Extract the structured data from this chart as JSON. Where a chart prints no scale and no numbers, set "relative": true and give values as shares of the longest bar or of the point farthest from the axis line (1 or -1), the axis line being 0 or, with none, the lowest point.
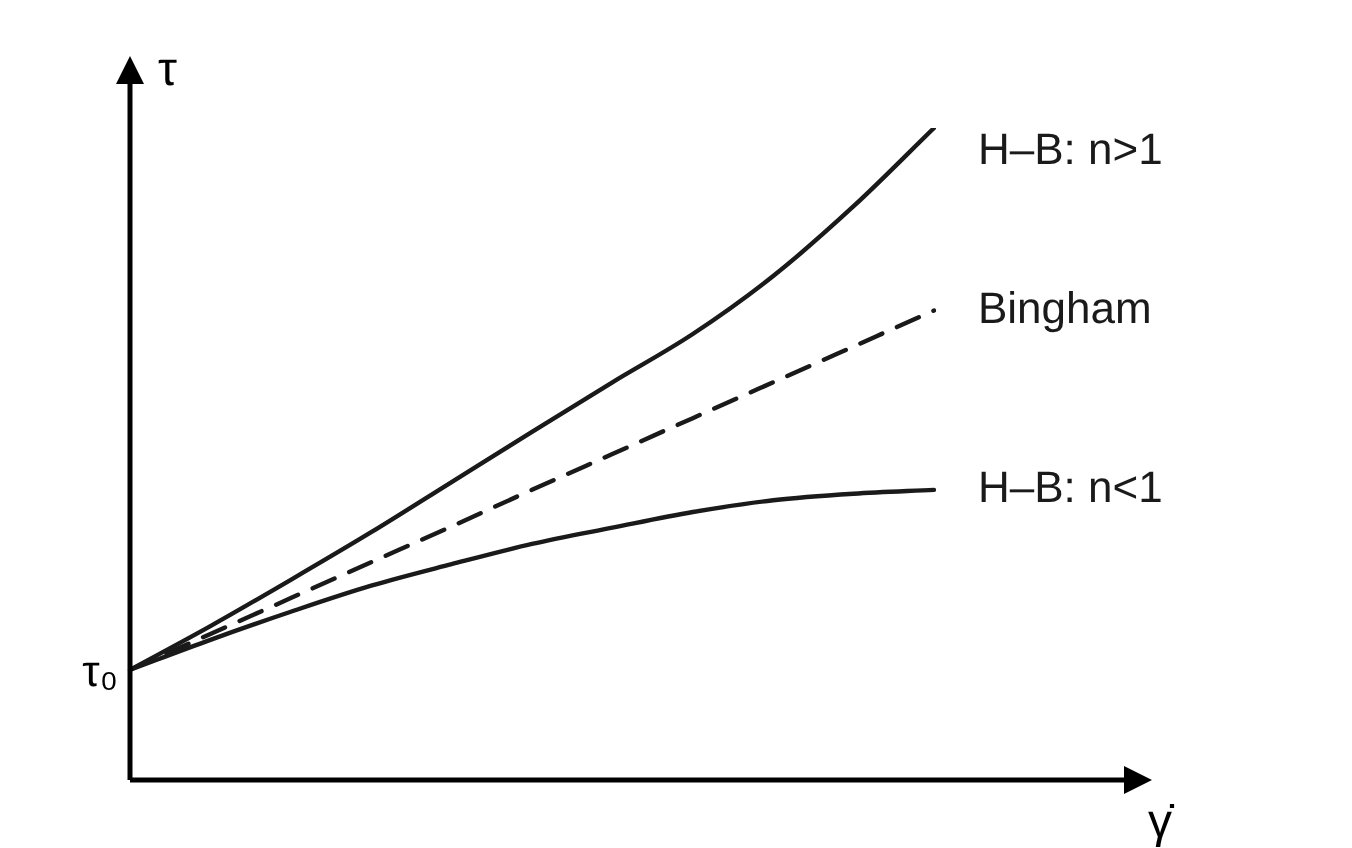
{
  "chart_data": {
    "type": "line",
    "relative": true,
    "ylabel": "τ",
    "xlabel": "γ̇",
    "marker": "none",
    "legend": false,
    "categories": [
      null,
      null,
      null,
      null,
      null,
      null,
      null,
      null,
      null,
      null,
      null
    ],
    "annotations": [
      "τ₀"
    ],
    "series": [
      {
        "name": "H–B: n>1",
        "color": "#1a1a1a",
        "line_style": "solid",
        "values": [
          0.169,
          0.236,
          0.307,
          0.38,
          0.457,
          0.534,
          0.61,
          0.684,
          0.773,
          0.88,
          1
        ]
      },
      {
        "name": "Bingham",
        "color": "#1a1a1a",
        "line_style": "dashed",
        "values": [
          0.169,
          0.224,
          0.279,
          0.334,
          0.389,
          0.445,
          0.5,
          0.555,
          0.61,
          0.665,
          0.72
        ]
      },
      {
        "name": "H–B: n<1",
        "color": "#1a1a1a",
        "line_style": "solid",
        "values": [
          0.169,
          0.215,
          0.258,
          0.298,
          0.331,
          0.362,
          0.387,
          0.411,
          0.429,
          0.439,
          0.445
        ]
      }
    ]
  }
}
